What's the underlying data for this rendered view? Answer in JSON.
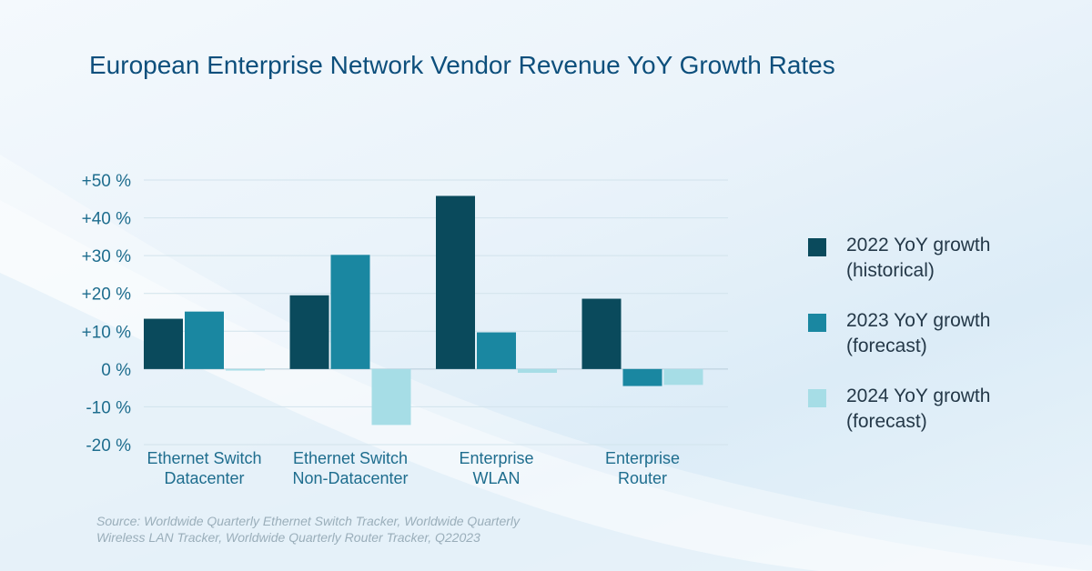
{
  "title": "European Enterprise Network Vendor Revenue YoY Growth Rates",
  "source": [
    "Source: Worldwide Quarterly Ethernet Switch Tracker, Worldwide Quarterly",
    "Wireless LAN Tracker, Worldwide Quarterly Router Tracker, Q22023"
  ],
  "legend": [
    {
      "lines": [
        "2022 YoY growth",
        "(historical)"
      ],
      "color": "#0a4a5c"
    },
    {
      "lines": [
        "2023 YoY growth",
        "(forecast)"
      ],
      "color": "#1a87a1"
    },
    {
      "lines": [
        "2024 YoY growth",
        "(forecast)"
      ],
      "color": "#a6dde6"
    }
  ],
  "chart_data": {
    "type": "bar",
    "title": "European Enterprise Network Vendor Revenue YoY Growth Rates",
    "categories": [
      [
        "Ethernet Switch",
        "Datacenter"
      ],
      [
        "Ethernet Switch",
        "Non-Datacenter"
      ],
      [
        "Enterprise",
        "WLAN"
      ],
      [
        "Enterprise",
        "Router"
      ]
    ],
    "series": [
      {
        "name": "2022 YoY growth (historical)",
        "color": "#0a4a5c",
        "values": [
          13.3,
          19.5,
          45.8,
          18.6
        ]
      },
      {
        "name": "2023 YoY growth (forecast)",
        "color": "#1a87a1",
        "values": [
          15.2,
          30.2,
          9.7,
          -4.5
        ]
      },
      {
        "name": "2024 YoY growth (forecast)",
        "color": "#a6dde6",
        "values": [
          -0.4,
          -14.8,
          -1.0,
          -4.2
        ]
      }
    ],
    "ylim": [
      -20,
      50
    ],
    "yticks": [
      50,
      40,
      30,
      20,
      10,
      0,
      -10,
      -20
    ],
    "ytick_labels": [
      "+50 %",
      "+40 %",
      "+30 %",
      "+20 %",
      "+10 %",
      "0 %",
      "-10 %",
      "-20 %"
    ],
    "grid": true,
    "legend_position": "right"
  }
}
